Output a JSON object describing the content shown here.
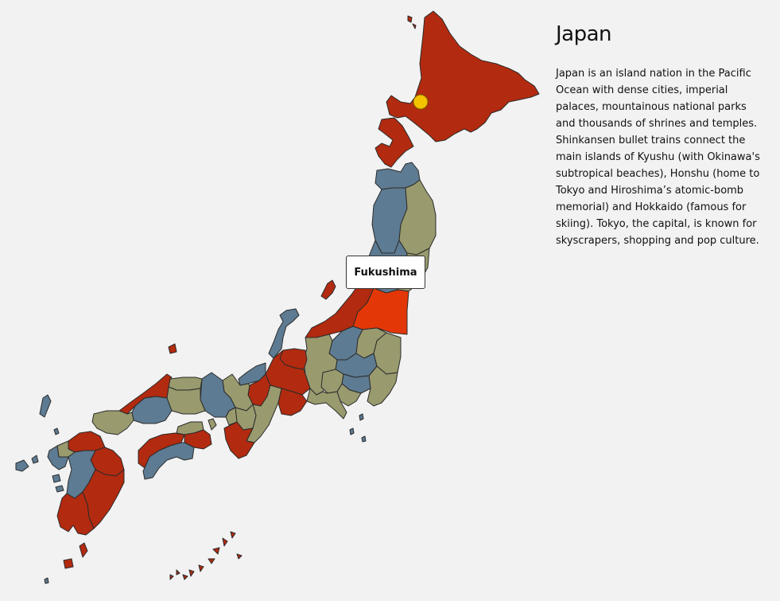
{
  "map": {
    "country": "Japan",
    "hovered_region": "Fukushima",
    "colors": {
      "red": "#b22a0f",
      "blue": "#5d7b92",
      "olive": "#999a6e",
      "highlight": "#e43708",
      "marker": "#f5c200",
      "background": "#f2f2f2"
    }
  },
  "info": {
    "title": "Japan",
    "description": "Japan is an island nation in the Pacific Ocean with dense cities, imperial palaces, mountainous national parks and thousands of shrines and temples. Shinkansen bullet trains connect the main islands of Kyushu (with Okinawa's subtropical beaches), Honshu (home to Tokyo and Hiroshima’s atomic-bomb memorial) and Hokkaido (famous for skiing). Tokyo, the capital, is known for skyscrapers, shopping and pop culture."
  }
}
